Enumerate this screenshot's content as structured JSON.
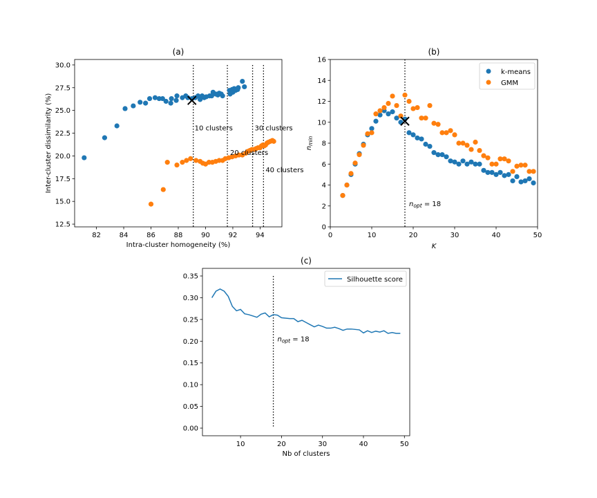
{
  "chart_data": [
    {
      "panel": "(a)",
      "type": "scatter",
      "title": "(a)",
      "xlabel": "Intra-cluster homogeneity (%)",
      "ylabel": "Inter-cluster dissimilarity (%)",
      "xlim": [
        80.4,
        95.6
      ],
      "ylim": [
        12.2,
        30.6
      ],
      "xticks": [
        82,
        84,
        86,
        88,
        90,
        92,
        94
      ],
      "yticks": [
        12.5,
        15.0,
        17.5,
        20.0,
        22.5,
        25.0,
        27.5,
        30.0
      ],
      "vlines": [
        {
          "x": 89.1,
          "label": "10 clusters",
          "label_x": 89.2,
          "label_y": 22.8
        },
        {
          "x": 91.6,
          "label": "20 clusters",
          "label_x": 91.8,
          "label_y": 20.1
        },
        {
          "x": 93.45,
          "label": "30 clusters",
          "label_x": 93.6,
          "label_y": 22.8
        },
        {
          "x": 94.25,
          "label": "40 clusters",
          "label_x": 94.4,
          "label_y": 18.2
        }
      ],
      "marker_x": {
        "x": 89.0,
        "y": 26.1
      },
      "series": [
        {
          "name": "k-means",
          "color": "#1f77b4",
          "points": [
            [
              81.1,
              19.8
            ],
            [
              82.6,
              22.0
            ],
            [
              83.5,
              23.3
            ],
            [
              84.1,
              25.2
            ],
            [
              84.7,
              25.5
            ],
            [
              85.2,
              25.9
            ],
            [
              85.6,
              25.8
            ],
            [
              85.9,
              26.3
            ],
            [
              86.3,
              26.4
            ],
            [
              86.6,
              26.3
            ],
            [
              86.85,
              26.3
            ],
            [
              87.1,
              26.0
            ],
            [
              87.45,
              25.8
            ],
            [
              87.5,
              26.3
            ],
            [
              87.85,
              26.1
            ],
            [
              87.9,
              26.6
            ],
            [
              88.3,
              26.4
            ],
            [
              88.55,
              26.6
            ],
            [
              88.7,
              26.4
            ],
            [
              89.0,
              26.3
            ],
            [
              89.25,
              26.4
            ],
            [
              89.45,
              26.6
            ],
            [
              89.6,
              26.2
            ],
            [
              89.75,
              26.6
            ],
            [
              89.9,
              26.4
            ],
            [
              90.05,
              26.5
            ],
            [
              90.3,
              26.6
            ],
            [
              90.45,
              26.6
            ],
            [
              90.55,
              27.0
            ],
            [
              90.75,
              26.8
            ],
            [
              90.9,
              26.7
            ],
            [
              91.0,
              26.9
            ],
            [
              91.15,
              26.8
            ],
            [
              91.25,
              26.6
            ],
            [
              91.75,
              27.2
            ],
            [
              91.8,
              26.8
            ],
            [
              91.95,
              27.3
            ],
            [
              92.0,
              27.0
            ],
            [
              92.1,
              27.4
            ],
            [
              92.2,
              27.2
            ],
            [
              92.35,
              27.3
            ],
            [
              92.4,
              27.5
            ],
            [
              92.7,
              28.2
            ],
            [
              92.85,
              27.6
            ]
          ]
        },
        {
          "name": "GMM",
          "color": "#ff7f0e",
          "points": [
            [
              86.0,
              14.7
            ],
            [
              86.9,
              16.3
            ],
            [
              87.2,
              19.3
            ],
            [
              87.9,
              19.0
            ],
            [
              88.3,
              19.3
            ],
            [
              88.6,
              19.5
            ],
            [
              88.9,
              19.7
            ],
            [
              89.3,
              19.5
            ],
            [
              89.6,
              19.4
            ],
            [
              89.8,
              19.2
            ],
            [
              90.0,
              19.1
            ],
            [
              90.25,
              19.3
            ],
            [
              90.5,
              19.3
            ],
            [
              90.75,
              19.4
            ],
            [
              91.0,
              19.5
            ],
            [
              91.25,
              19.5
            ],
            [
              91.45,
              19.7
            ],
            [
              91.7,
              19.8
            ],
            [
              91.95,
              19.9
            ],
            [
              92.2,
              20.0
            ],
            [
              92.45,
              20.1
            ],
            [
              92.7,
              20.1
            ],
            [
              92.95,
              20.3
            ],
            [
              93.1,
              20.5
            ],
            [
              93.25,
              20.6
            ],
            [
              93.4,
              20.7
            ],
            [
              93.55,
              20.7
            ],
            [
              93.7,
              20.8
            ],
            [
              93.85,
              20.9
            ],
            [
              94.0,
              20.9
            ],
            [
              94.1,
              21.1
            ],
            [
              94.2,
              21.2
            ],
            [
              94.3,
              21.1
            ],
            [
              94.4,
              21.2
            ],
            [
              94.5,
              21.4
            ],
            [
              94.6,
              21.5
            ],
            [
              94.75,
              21.6
            ],
            [
              94.9,
              21.7
            ],
            [
              95.0,
              21.6
            ]
          ]
        }
      ]
    },
    {
      "panel": "(b)",
      "type": "scatter",
      "title": "(b)",
      "xlabel": "K",
      "ylabel": "n_min",
      "xlim": [
        0,
        50
      ],
      "ylim": [
        0,
        16
      ],
      "xticks": [
        0,
        10,
        20,
        30,
        40,
        50
      ],
      "yticks": [
        0,
        2,
        4,
        6,
        8,
        10,
        12,
        14,
        16
      ],
      "vline_x": 18,
      "marker_x": {
        "x": 18,
        "y": 10.1
      },
      "annotation": {
        "x": 19,
        "y": 2.0,
        "text_prefix": "n",
        "subscript": "opt",
        "text_suffix": " =  18"
      },
      "legend_position": "top-right",
      "series": [
        {
          "name": "k-means",
          "color": "#1f77b4",
          "points": [
            [
              3,
              3.0
            ],
            [
              4,
              4.0
            ],
            [
              5,
              5.0
            ],
            [
              6,
              6.0
            ],
            [
              7,
              7.0
            ],
            [
              8,
              7.9
            ],
            [
              9,
              8.8
            ],
            [
              10,
              9.4
            ],
            [
              11,
              10.1
            ],
            [
              12,
              10.7
            ],
            [
              13,
              11.1
            ],
            [
              14,
              10.8
            ],
            [
              15,
              11.0
            ],
            [
              16,
              10.4
            ],
            [
              17,
              10.0
            ],
            [
              18,
              10.3
            ],
            [
              19,
              9.0
            ],
            [
              20,
              8.8
            ],
            [
              21,
              8.5
            ],
            [
              22,
              8.4
            ],
            [
              23,
              7.9
            ],
            [
              24,
              7.7
            ],
            [
              25,
              7.1
            ],
            [
              26,
              6.9
            ],
            [
              27,
              6.9
            ],
            [
              28,
              6.7
            ],
            [
              29,
              6.3
            ],
            [
              30,
              6.2
            ],
            [
              31,
              6.0
            ],
            [
              32,
              6.3
            ],
            [
              33,
              6.0
            ],
            [
              34,
              6.2
            ],
            [
              35,
              6.0
            ],
            [
              36,
              6.0
            ],
            [
              37,
              5.4
            ],
            [
              38,
              5.2
            ],
            [
              39,
              5.2
            ],
            [
              40,
              5.0
            ],
            [
              41,
              5.2
            ],
            [
              42,
              4.9
            ],
            [
              43,
              5.0
            ],
            [
              44,
              4.4
            ],
            [
              45,
              4.8
            ],
            [
              46,
              4.3
            ],
            [
              47,
              4.4
            ],
            [
              48,
              4.6
            ],
            [
              49,
              4.2
            ]
          ]
        },
        {
          "name": "GMM",
          "color": "#ff7f0e",
          "points": [
            [
              3,
              3.0
            ],
            [
              4,
              4.0
            ],
            [
              5,
              5.1
            ],
            [
              6,
              6.1
            ],
            [
              7,
              6.9
            ],
            [
              8,
              7.8
            ],
            [
              9,
              8.9
            ],
            [
              10,
              9.0
            ],
            [
              11,
              10.8
            ],
            [
              12,
              11.1
            ],
            [
              13,
              11.4
            ],
            [
              14,
              11.8
            ],
            [
              15,
              12.5
            ],
            [
              16,
              11.6
            ],
            [
              17,
              10.6
            ],
            [
              18,
              12.6
            ],
            [
              19,
              12.0
            ],
            [
              20,
              11.3
            ],
            [
              21,
              11.4
            ],
            [
              22,
              10.4
            ],
            [
              23,
              10.4
            ],
            [
              24,
              11.6
            ],
            [
              25,
              9.9
            ],
            [
              26,
              9.8
            ],
            [
              27,
              9.0
            ],
            [
              28,
              9.0
            ],
            [
              29,
              9.2
            ],
            [
              30,
              8.8
            ],
            [
              31,
              8.0
            ],
            [
              32,
              8.0
            ],
            [
              33,
              7.8
            ],
            [
              34,
              7.4
            ],
            [
              35,
              8.1
            ],
            [
              36,
              7.3
            ],
            [
              37,
              6.8
            ],
            [
              38,
              6.6
            ],
            [
              39,
              6.0
            ],
            [
              40,
              6.0
            ],
            [
              41,
              6.5
            ],
            [
              42,
              6.5
            ],
            [
              43,
              6.3
            ],
            [
              44,
              5.3
            ],
            [
              45,
              5.8
            ],
            [
              46,
              5.9
            ],
            [
              47,
              5.9
            ],
            [
              48,
              5.3
            ],
            [
              49,
              5.3
            ]
          ]
        }
      ]
    },
    {
      "panel": "(c)",
      "type": "line",
      "title": "(c)",
      "xlabel": "Nb of clusters",
      "ylabel": "",
      "xlim": [
        0.7,
        51.3
      ],
      "ylim": [
        -0.0175,
        0.3675
      ],
      "xticks": [
        10,
        20,
        30,
        40,
        50
      ],
      "yticks": [
        0.0,
        0.05,
        0.1,
        0.15,
        0.2,
        0.25,
        0.3,
        0.35
      ],
      "vline_x": 18,
      "annotation": {
        "x": 19,
        "y": 0.2,
        "text_prefix": "n",
        "subscript": "opt",
        "text_suffix": " =  18"
      },
      "legend_position": "top-right",
      "series": [
        {
          "name": "Silhouette score",
          "color": "#1f77b4",
          "x": [
            3,
            4,
            5,
            6,
            7,
            8,
            9,
            10,
            11,
            12,
            13,
            14,
            15,
            16,
            17,
            18,
            19,
            20,
            21,
            22,
            23,
            24,
            25,
            26,
            27,
            28,
            29,
            30,
            31,
            32,
            33,
            34,
            35,
            36,
            37,
            38,
            39,
            40,
            41,
            42,
            43,
            44,
            45,
            46,
            47,
            48,
            49
          ],
          "y": [
            0.3,
            0.315,
            0.32,
            0.315,
            0.303,
            0.28,
            0.27,
            0.273,
            0.263,
            0.261,
            0.258,
            0.255,
            0.262,
            0.265,
            0.256,
            0.261,
            0.26,
            0.254,
            0.253,
            0.252,
            0.252,
            0.245,
            0.248,
            0.243,
            0.238,
            0.233,
            0.237,
            0.234,
            0.23,
            0.23,
            0.232,
            0.229,
            0.225,
            0.228,
            0.228,
            0.227,
            0.226,
            0.219,
            0.224,
            0.22,
            0.223,
            0.221,
            0.224,
            0.218,
            0.22,
            0.218,
            0.218
          ]
        }
      ]
    }
  ]
}
